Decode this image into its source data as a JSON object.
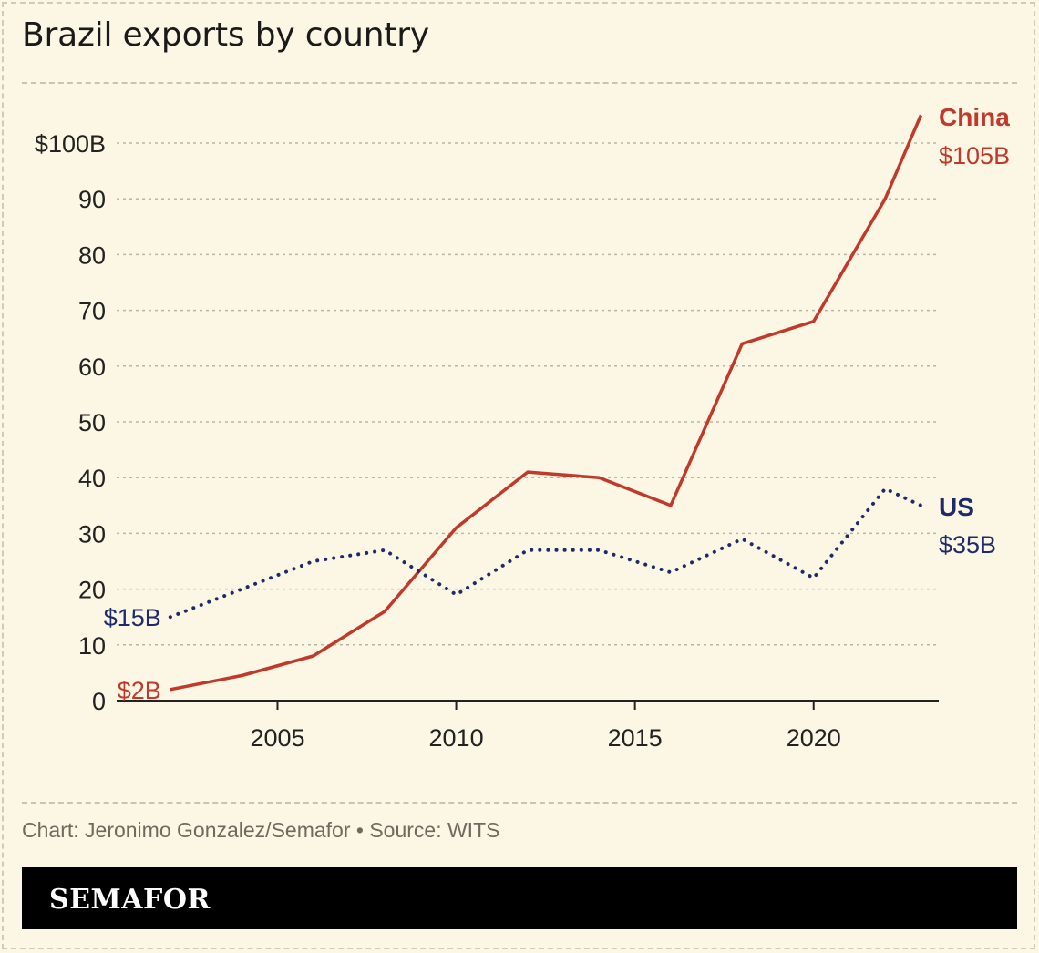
{
  "title": "Brazil exports by country",
  "credit": "Chart: Jeronimo Gonzalez/Semafor • Source: WITS",
  "brand": "SEMAFOR",
  "chart_data": {
    "type": "line",
    "title": "Brazil exports by country",
    "xlabel": "",
    "ylabel": "",
    "xlim": [
      2000.5,
      2023.5
    ],
    "ylim": [
      0,
      100
    ],
    "x_ticks": [
      2005,
      2010,
      2015,
      2020
    ],
    "x_tick_labels": [
      "2005",
      "2010",
      "2015",
      "2020"
    ],
    "y_ticks": [
      0,
      10,
      20,
      30,
      40,
      50,
      60,
      70,
      80,
      90,
      100
    ],
    "y_tick_labels": [
      "0",
      "10",
      "20",
      "30",
      "40",
      "50",
      "60",
      "70",
      "80",
      "90",
      "$100B"
    ],
    "grid": true,
    "series": [
      {
        "name": "China",
        "color": "#c0392b",
        "style": "solid",
        "start_label": "$2B",
        "end_label": "$105B",
        "x": [
          2002,
          2004,
          2006,
          2008,
          2010,
          2012,
          2014,
          2016,
          2018,
          2020,
          2022,
          2023
        ],
        "values": [
          2,
          4.5,
          8,
          16,
          31,
          41,
          40,
          35,
          64,
          68,
          90,
          105
        ]
      },
      {
        "name": "US",
        "color": "#1f2a6b",
        "style": "dotted",
        "start_label": "$15B",
        "end_label": "$35B",
        "x": [
          2002,
          2004,
          2006,
          2008,
          2010,
          2012,
          2014,
          2016,
          2018,
          2020,
          2022,
          2023
        ],
        "values": [
          15,
          20,
          25,
          27,
          19,
          27,
          27,
          23,
          29,
          22,
          38,
          35
        ]
      }
    ]
  }
}
